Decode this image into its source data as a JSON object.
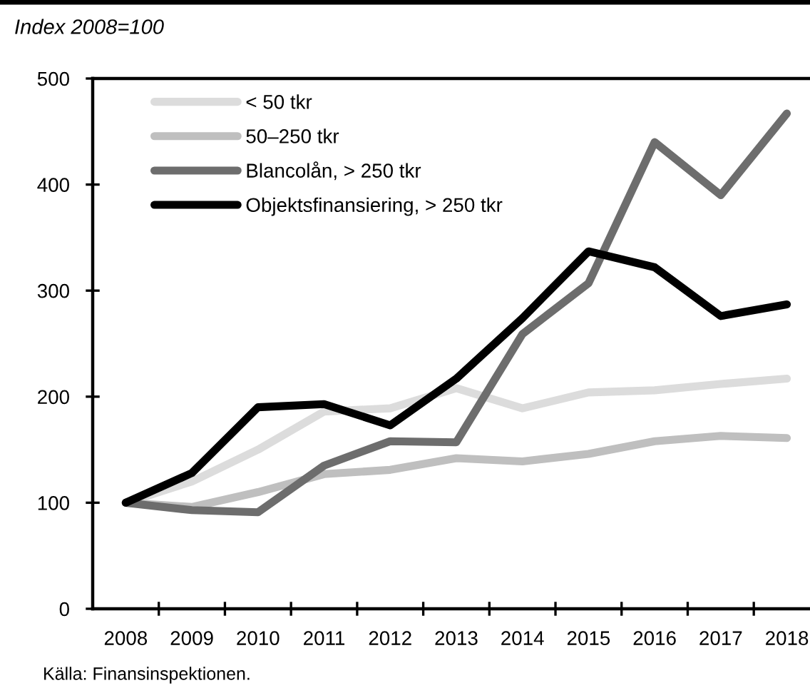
{
  "chart_data": {
    "type": "line",
    "ylabel": "Index 2008=100",
    "annotations": [
      "Källa: Finansinspektionen."
    ],
    "categories": [
      "2008",
      "2009",
      "2010",
      "2011",
      "2012",
      "2013",
      "2014",
      "2015",
      "2016",
      "2017",
      "2018"
    ],
    "series": [
      {
        "name": "< 50 tkr",
        "color": "#dcdcdc",
        "values": [
          100,
          120,
          150,
          186,
          189,
          208,
          189,
          204,
          206,
          212,
          217
        ]
      },
      {
        "name": "50–250 tkr",
        "color": "#bfbfbf",
        "values": [
          100,
          96,
          110,
          127,
          131,
          142,
          139,
          146,
          158,
          163,
          161
        ]
      },
      {
        "name": "Blancolån, > 250 tkr",
        "color": "#6d6d6d",
        "values": [
          100,
          93,
          91,
          135,
          158,
          157,
          259,
          307,
          440,
          390,
          467
        ]
      },
      {
        "name": "Objektsfinansiering, > 250 tkr",
        "color": "#000000",
        "values": [
          100,
          128,
          190,
          193,
          173,
          217,
          274,
          337,
          322,
          276,
          287
        ]
      }
    ],
    "ylim": [
      0,
      500
    ],
    "yticks": [
      0,
      100,
      200,
      300,
      400,
      500
    ],
    "legend": "top left",
    "marker": "none",
    "line_style": "solid"
  }
}
